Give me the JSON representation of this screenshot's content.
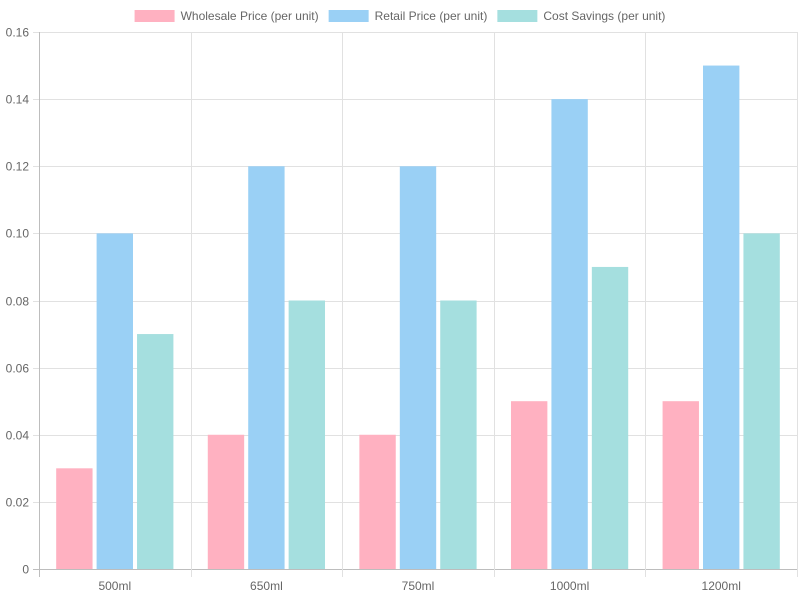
{
  "chart_data": {
    "type": "bar",
    "categories": [
      "500ml",
      "650ml",
      "750ml",
      "1000ml",
      "1200ml"
    ],
    "series": [
      {
        "name": "Wholesale Price (per unit)",
        "values": [
          0.03,
          0.04,
          0.04,
          0.05,
          0.05
        ],
        "fill": "#ffb1c1",
        "stroke": "#ff6384"
      },
      {
        "name": "Retail Price (per unit)",
        "values": [
          0.1,
          0.12,
          0.12,
          0.14,
          0.15
        ],
        "fill": "#9ad0f5",
        "stroke": "#36a2eb"
      },
      {
        "name": "Cost Savings (per unit)",
        "values": [
          0.07,
          0.08,
          0.08,
          0.09,
          0.1
        ],
        "fill": "#a5dfdf",
        "stroke": "#4bc0c0"
      }
    ],
    "ylim": [
      0,
      0.16
    ],
    "yticks": [
      "0",
      "0.02",
      "0.04",
      "0.06",
      "0.08",
      "0.10",
      "0.12",
      "0.14",
      "0.16"
    ],
    "grid": true,
    "legend_position": "top"
  }
}
